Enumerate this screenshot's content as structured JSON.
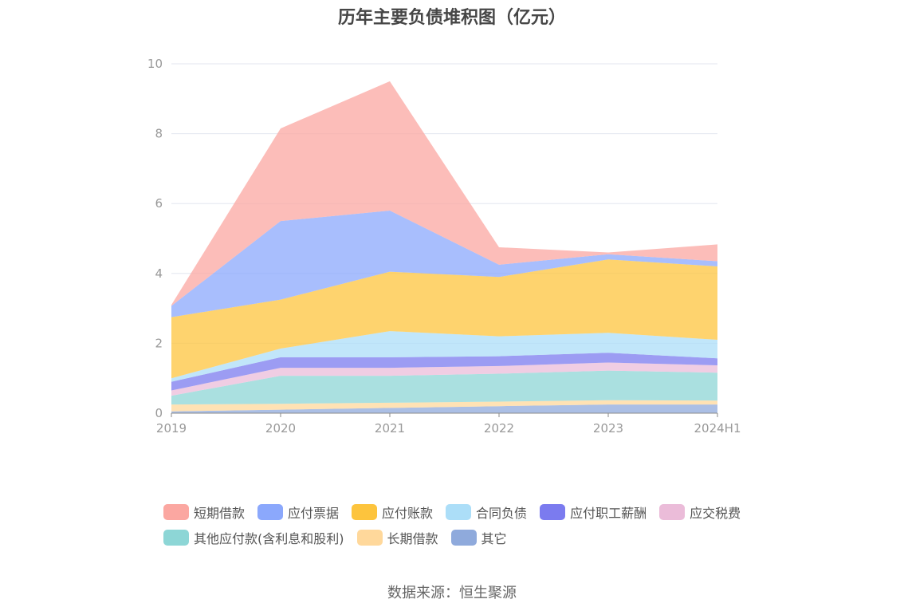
{
  "chart_data": {
    "type": "area",
    "stacked": true,
    "title": "历年主要负债堆积图（亿元）",
    "categories": [
      "2019",
      "2020",
      "2021",
      "2022",
      "2023",
      "2024H1"
    ],
    "ylim": [
      0,
      10
    ],
    "yticks": [
      0,
      2,
      4,
      6,
      8,
      10
    ],
    "grid": true,
    "legend_position": "bottom",
    "series": [
      {
        "name": "其它",
        "color": "#8faadc",
        "values": [
          0.05,
          0.1,
          0.15,
          0.2,
          0.25,
          0.25
        ]
      },
      {
        "name": "长期借款",
        "color": "#ffd89b",
        "values": [
          0.2,
          0.17,
          0.15,
          0.13,
          0.12,
          0.11
        ]
      },
      {
        "name": "其他应付款(含利息和股利)",
        "color": "#8dd6d6",
        "values": [
          0.25,
          0.8,
          0.77,
          0.8,
          0.85,
          0.8
        ]
      },
      {
        "name": "应交税费",
        "color": "#ebbcd9",
        "values": [
          0.15,
          0.23,
          0.23,
          0.22,
          0.23,
          0.21
        ]
      },
      {
        "name": "应付职工薪酬",
        "color": "#7b7bef",
        "values": [
          0.25,
          0.3,
          0.3,
          0.28,
          0.28,
          0.2
        ]
      },
      {
        "name": "合同负债",
        "color": "#acdef8",
        "values": [
          0.1,
          0.25,
          0.75,
          0.57,
          0.57,
          0.53
        ]
      },
      {
        "name": "应付账款",
        "color": "#fdc43d",
        "values": [
          1.75,
          1.4,
          1.7,
          1.7,
          2.1,
          2.1
        ]
      },
      {
        "name": "应付票据",
        "color": "#8ba8fc",
        "values": [
          0.32,
          2.25,
          1.75,
          0.35,
          0.15,
          0.15
        ]
      },
      {
        "name": "短期借款",
        "color": "#fba7a1",
        "values": [
          0.03,
          2.65,
          3.7,
          0.5,
          0.05,
          0.48
        ]
      }
    ],
    "legend_order": [
      "短期借款",
      "应付票据",
      "应付账款",
      "合同负债",
      "应付职工薪酬",
      "应交税费",
      "其他应付款(含利息和股利)",
      "长期借款",
      "其它"
    ]
  },
  "footer": {
    "source": "数据来源：恒生聚源"
  }
}
